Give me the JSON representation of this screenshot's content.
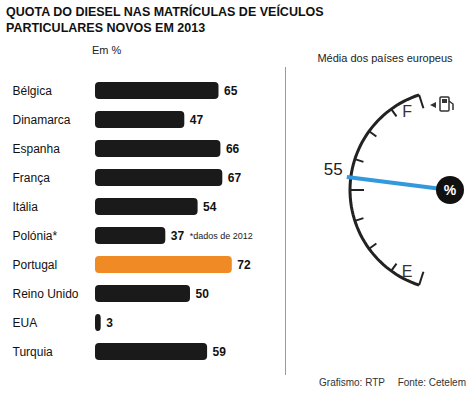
{
  "chart_data": {
    "type": "bar",
    "orientation": "horizontal",
    "title": "QUOTA DO DIESEL NAS MATRÍCULAS DE VEÍCULOS PARTICULARES NOVOS EM 2013",
    "subtitle": "Em %",
    "categories": [
      "Bélgica",
      "Dinamarca",
      "Espanha",
      "França",
      "Itália",
      "Polónia*",
      "Portugal",
      "Reino Unido",
      "EUA",
      "Turquia"
    ],
    "values": [
      65,
      47,
      66,
      67,
      54,
      37,
      72,
      50,
      3,
      59
    ],
    "colors": [
      "#1a1a1a",
      "#1a1a1a",
      "#1a1a1a",
      "#1a1a1a",
      "#1a1a1a",
      "#1a1a1a",
      "#f08a24",
      "#1a1a1a",
      "#1a1a1a",
      "#1a1a1a"
    ],
    "xlim": [
      0,
      100
    ],
    "data_labels": true,
    "tick_labels": "y",
    "annotations": [
      {
        "category": "Polónia*",
        "text": "*dados de 2012"
      }
    ],
    "gauge": {
      "title": "Média dos países europeus",
      "value": 55,
      "lim": [
        0,
        100
      ],
      "full_label": "F",
      "empty_label": "E",
      "unit": "%"
    },
    "credits": [
      "Grafismo: RTP",
      "Fonte: Cetelem"
    ]
  }
}
